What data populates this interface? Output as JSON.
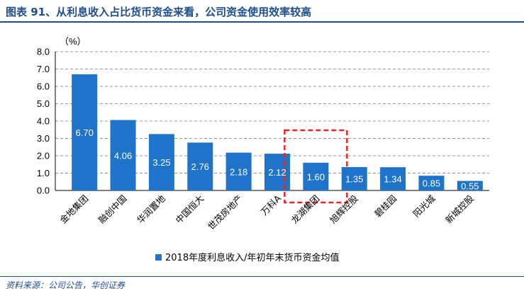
{
  "header": {
    "title": "图表 91、从利息收入占比货币资金来看，公司资金使用效率较高"
  },
  "footer": {
    "source": "资料来源：公司公告，华创证券"
  },
  "colors": {
    "bar": "#1f73c9",
    "highlight_border": "#e8262a",
    "title": "#1e4e8c"
  },
  "chart_data": {
    "type": "bar",
    "unit_label": "（%）",
    "categories": [
      "金地集团",
      "融创中国",
      "华润置地",
      "中国恒大",
      "世茂房地产",
      "万科A",
      "龙湖集团",
      "旭辉控股",
      "碧桂园",
      "阳光城",
      "新城控股"
    ],
    "series": [
      {
        "name": "2018年度利息收入/年初年末货币资金均值",
        "values": [
          6.7,
          4.06,
          3.25,
          2.76,
          2.18,
          2.12,
          1.6,
          1.35,
          1.34,
          0.85,
          0.55
        ],
        "value_labels": [
          "6.70",
          "4.06",
          "3.25",
          "2.76",
          "2.18",
          "2.12",
          "1.60",
          "1.35",
          "1.34",
          "0.85",
          "0.55"
        ]
      }
    ],
    "ylim": [
      0,
      8
    ],
    "yticks": [
      "0.0",
      "1.0",
      "2.0",
      "3.0",
      "4.0",
      "5.0",
      "6.0",
      "7.0",
      "8.0"
    ],
    "highlight_category": "龙湖集团",
    "grid": true,
    "legend_position": "bottom"
  }
}
